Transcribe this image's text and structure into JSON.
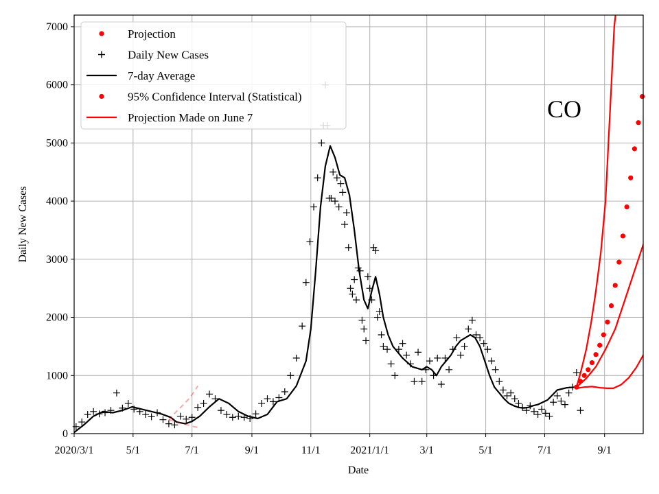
{
  "chart_data": {
    "type": "line",
    "xlabel": "Date",
    "ylabel": "Daily New Cases",
    "annotation": "CO",
    "xlim": [
      0,
      589
    ],
    "ylim": [
      0,
      7200
    ],
    "x_ticks": [
      {
        "day": 0,
        "label": "2020/3/1"
      },
      {
        "day": 61,
        "label": "5/1"
      },
      {
        "day": 122,
        "label": "7/1"
      },
      {
        "day": 184,
        "label": "9/1"
      },
      {
        "day": 245,
        "label": "11/1"
      },
      {
        "day": 306,
        "label": "2021/1/1"
      },
      {
        "day": 365,
        "label": "3/1"
      },
      {
        "day": 426,
        "label": "5/1"
      },
      {
        "day": 487,
        "label": "7/1"
      },
      {
        "day": 549,
        "label": "9/1"
      }
    ],
    "y_ticks": [
      0,
      1000,
      2000,
      3000,
      4000,
      5000,
      6000,
      7000
    ],
    "legend": [
      {
        "label": "Projection",
        "marker": "dot",
        "color": "#ff0000"
      },
      {
        "label": "Daily New Cases",
        "marker": "plus",
        "color": "#000000"
      },
      {
        "label": "7-day Average",
        "marker": "line",
        "color": "#000000"
      },
      {
        "label": "95% Confidence Interval (Statistical)",
        "marker": "dot",
        "color": "#ff0000"
      },
      {
        "label": "Projection Made on June 7",
        "marker": "line",
        "color": "#ff0000"
      }
    ],
    "series": [
      {
        "name": "7-day Average",
        "color": "#000000",
        "x": [
          0,
          10,
          20,
          30,
          40,
          50,
          60,
          70,
          80,
          90,
          100,
          106,
          115,
          122,
          130,
          140,
          150,
          160,
          170,
          180,
          190,
          200,
          210,
          220,
          230,
          240,
          245,
          250,
          255,
          260,
          265,
          270,
          275,
          280,
          285,
          290,
          295,
          300,
          304,
          308,
          312,
          316,
          320,
          325,
          330,
          340,
          350,
          360,
          365,
          370,
          375,
          380,
          385,
          390,
          395,
          400,
          405,
          410,
          415,
          420,
          425,
          430,
          435,
          440,
          445,
          450,
          455,
          460,
          465,
          470,
          475,
          480,
          490,
          500,
          510,
          520
        ],
        "y": [
          20,
          150,
          300,
          380,
          360,
          400,
          460,
          420,
          380,
          340,
          280,
          200,
          170,
          210,
          300,
          460,
          600,
          520,
          380,
          300,
          260,
          330,
          550,
          600,
          820,
          1250,
          1800,
          2800,
          3900,
          4600,
          4950,
          4750,
          4450,
          4400,
          4100,
          3500,
          2800,
          2300,
          2150,
          2450,
          2700,
          2400,
          2000,
          1700,
          1500,
          1300,
          1150,
          1100,
          1150,
          1100,
          1000,
          1150,
          1250,
          1350,
          1500,
          1600,
          1650,
          1700,
          1650,
          1500,
          1250,
          1000,
          800,
          700,
          600,
          520,
          480,
          450,
          440,
          450,
          480,
          500,
          580,
          750,
          790,
          800
        ]
      },
      {
        "name": "Projection Made on June 7",
        "color": "#ff0000",
        "dashed": true,
        "x": [
          98,
          104,
          112,
          120,
          128
        ],
        "y": [
          230,
          350,
          480,
          620,
          820
        ]
      },
      {
        "name": "Projection Made on June 7 (lower)",
        "color": "#ff0000",
        "dashed": true,
        "x": [
          98,
          106,
          115,
          124,
          130
        ],
        "y": [
          240,
          200,
          160,
          120,
          100
        ]
      },
      {
        "name": "95% CI upper",
        "color": "#ff0000",
        "x": [
          520,
          525,
          530,
          535,
          540,
          545,
          550,
          553,
          556,
          559,
          561
        ],
        "y": [
          800,
          1100,
          1450,
          1900,
          2450,
          3100,
          4000,
          5000,
          6000,
          7000,
          7300
        ]
      },
      {
        "name": "95% CI middle",
        "color": "#ff0000",
        "x": [
          520,
          530,
          540,
          550,
          560,
          570,
          580,
          590
        ],
        "y": [
          800,
          950,
          1150,
          1450,
          1800,
          2300,
          2800,
          3300
        ]
      },
      {
        "name": "95% CI lower",
        "color": "#ff0000",
        "x": [
          520,
          528,
          536,
          544,
          552,
          558,
          566,
          574,
          582,
          590
        ],
        "y": [
          780,
          800,
          810,
          790,
          780,
          780,
          840,
          960,
          1140,
          1380
        ]
      }
    ],
    "projection_points": {
      "name": "Projection",
      "color": "#ff0000",
      "x": [
        520,
        524,
        528,
        532,
        536,
        540,
        544,
        548,
        552,
        556,
        560,
        564,
        568,
        572,
        576,
        580,
        584,
        588
      ],
      "y": [
        800,
        900,
        1000,
        1100,
        1220,
        1360,
        1520,
        1700,
        1920,
        2200,
        2550,
        2950,
        3400,
        3900,
        4400,
        4900,
        5350,
        5800
      ]
    },
    "daily_cases_sample": {
      "name": "Daily New Cases",
      "color": "#000000",
      "x": [
        2,
        8,
        14,
        20,
        26,
        32,
        38,
        44,
        50,
        56,
        62,
        68,
        74,
        80,
        86,
        92,
        98,
        104,
        110,
        116,
        122,
        128,
        134,
        140,
        146,
        152,
        158,
        164,
        170,
        176,
        182,
        188,
        194,
        200,
        206,
        212,
        218,
        224,
        230,
        236,
        240,
        244,
        248,
        252,
        256,
        258,
        260,
        262,
        264,
        266,
        268,
        270,
        272,
        274,
        276,
        278,
        280,
        282,
        284,
        286,
        288,
        290,
        292,
        294,
        296,
        298,
        300,
        302,
        304,
        306,
        308,
        310,
        312,
        314,
        316,
        318,
        320,
        324,
        328,
        332,
        336,
        340,
        344,
        348,
        352,
        356,
        360,
        364,
        368,
        372,
        376,
        380,
        384,
        388,
        392,
        396,
        400,
        404,
        408,
        412,
        416,
        420,
        424,
        428,
        432,
        436,
        440,
        444,
        448,
        452,
        456,
        460,
        464,
        468,
        472,
        476,
        480,
        484,
        488,
        492,
        496,
        500,
        504,
        508,
        512,
        516,
        520,
        524
      ],
      "y": [
        120,
        200,
        330,
        380,
        340,
        360,
        400,
        700,
        440,
        520,
        420,
        380,
        330,
        290,
        360,
        240,
        170,
        150,
        300,
        250,
        280,
        450,
        520,
        680,
        600,
        400,
        330,
        280,
        300,
        280,
        260,
        340,
        520,
        600,
        550,
        620,
        720,
        1000,
        1300,
        1850,
        2600,
        3300,
        3900,
        4400,
        5000,
        5300,
        6000,
        5300,
        4050,
        4050,
        4500,
        4000,
        4400,
        3900,
        4300,
        4150,
        3600,
        3800,
        3200,
        2500,
        2400,
        2650,
        2300,
        2850,
        2800,
        1950,
        1800,
        1600,
        2700,
        2500,
        2300,
        3200,
        3150,
        2000,
        2100,
        1700,
        1500,
        1450,
        1200,
        1000,
        1450,
        1550,
        1350,
        1200,
        900,
        1400,
        900,
        1100,
        1250,
        1000,
        1300,
        850,
        1300,
        1100,
        1450,
        1650,
        1350,
        1500,
        1800,
        1950,
        1700,
        1650,
        1550,
        1450,
        1250,
        1100,
        900,
        750,
        650,
        700,
        600,
        520,
        450,
        400,
        480,
        380,
        330,
        420,
        350,
        300,
        540,
        650,
        560,
        500,
        700,
        800,
        1050,
        400
      ]
    }
  }
}
